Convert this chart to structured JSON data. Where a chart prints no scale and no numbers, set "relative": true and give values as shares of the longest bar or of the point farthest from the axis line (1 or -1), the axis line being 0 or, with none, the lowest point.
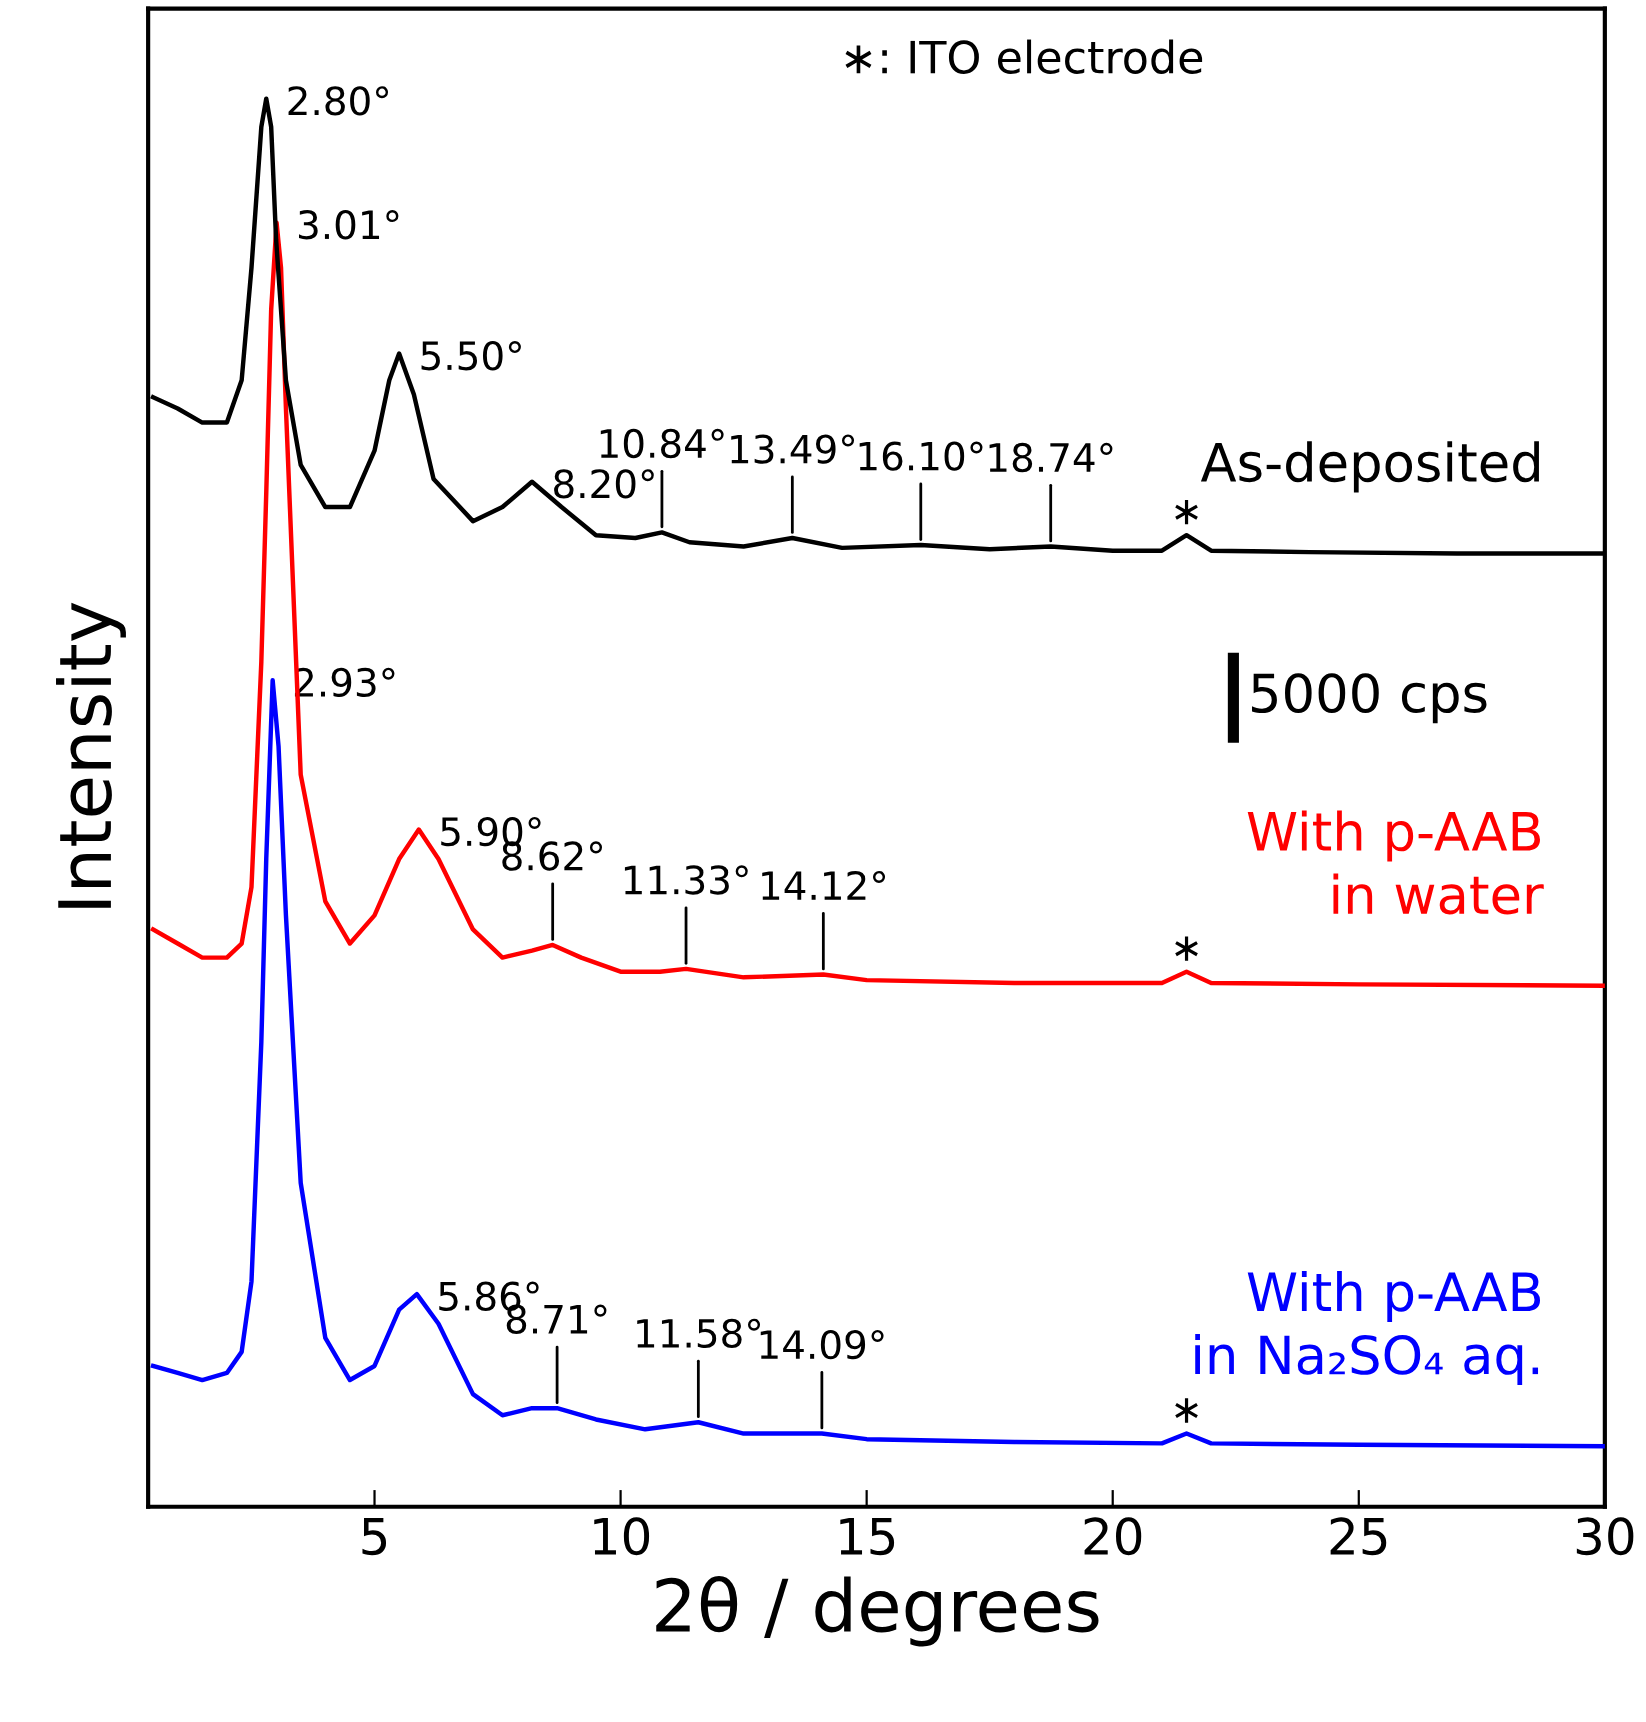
{
  "chart_data": {
    "type": "line",
    "relative": true,
    "xlabel": "2θ / degrees",
    "ylabel": "Intensity",
    "xlim": [
      0.4,
      30
    ],
    "xticks": [
      5,
      10,
      15,
      20,
      25,
      30
    ],
    "tick_labels": "x",
    "grid": false,
    "legend": false,
    "series": [
      {
        "name": "As-deposited",
        "color": "#000000",
        "x": [
          0.5,
          1,
          1.5,
          2,
          2.3,
          2.5,
          2.7,
          2.8,
          2.9,
          3.0,
          3.2,
          3.5,
          4,
          4.5,
          5,
          5.3,
          5.5,
          5.8,
          6.2,
          7,
          7.6,
          8.2,
          8.8,
          9.5,
          10.3,
          10.84,
          11.4,
          12.5,
          13.49,
          14.5,
          16.1,
          17.5,
          18.74,
          20,
          21,
          21.5,
          22,
          24,
          27,
          30
        ],
        "values": [
          0.788,
          0.78,
          0.77,
          0.77,
          0.8,
          0.88,
          0.98,
          1.0,
          0.98,
          0.9,
          0.8,
          0.74,
          0.71,
          0.71,
          0.75,
          0.8,
          0.819,
          0.79,
          0.73,
          0.7,
          0.71,
          0.728,
          0.71,
          0.69,
          0.688,
          0.692,
          0.685,
          0.682,
          0.688,
          0.681,
          0.683,
          0.68,
          0.682,
          0.679,
          0.679,
          0.69,
          0.679,
          0.678,
          0.677,
          0.677
        ]
      },
      {
        "name": "With p-AAB\nin water",
        "color": "#ff0000",
        "x": [
          0.5,
          1,
          1.5,
          2,
          2.3,
          2.5,
          2.7,
          2.8,
          2.9,
          3.01,
          3.1,
          3.2,
          3.5,
          4,
          4.5,
          5,
          5.5,
          5.9,
          6.3,
          7,
          7.6,
          8.2,
          8.62,
          9.2,
          10,
          10.8,
          11.33,
          12.5,
          14.12,
          15,
          18,
          21,
          21.5,
          22,
          25,
          30
        ],
        "values": [
          0.41,
          0.4,
          0.39,
          0.39,
          0.4,
          0.44,
          0.6,
          0.72,
          0.85,
          0.912,
          0.88,
          0.78,
          0.52,
          0.43,
          0.4,
          0.42,
          0.46,
          0.481,
          0.46,
          0.41,
          0.39,
          0.395,
          0.399,
          0.39,
          0.38,
          0.38,
          0.382,
          0.376,
          0.378,
          0.374,
          0.372,
          0.372,
          0.38,
          0.372,
          0.371,
          0.37
        ]
      },
      {
        "name": "With p-AAB\nin Na₂SO₄ aq.",
        "color": "#0000ff",
        "x": [
          0.5,
          1,
          1.5,
          2,
          2.3,
          2.5,
          2.7,
          2.8,
          2.93,
          3.05,
          3.2,
          3.5,
          4,
          4.5,
          5,
          5.5,
          5.86,
          6.3,
          7,
          7.6,
          8.2,
          8.71,
          9.5,
          10.5,
          11.58,
          12.5,
          14.09,
          15,
          18,
          21,
          21.5,
          22,
          25,
          30
        ],
        "values": [
          0.1,
          0.095,
          0.09,
          0.095,
          0.11,
          0.16,
          0.33,
          0.46,
          0.587,
          0.54,
          0.42,
          0.23,
          0.12,
          0.09,
          0.1,
          0.14,
          0.151,
          0.13,
          0.08,
          0.065,
          0.07,
          0.07,
          0.062,
          0.055,
          0.06,
          0.052,
          0.052,
          0.048,
          0.046,
          0.045,
          0.052,
          0.045,
          0.044,
          0.043
        ]
      }
    ],
    "annotations": [
      "∗: ITO electrode",
      "5000 cps",
      {
        "text": "2.80°",
        "x": 2.8,
        "y": 1.0
      },
      {
        "text": "5.50°",
        "x": 5.5,
        "y": 0.819
      },
      {
        "text": "8.20°",
        "x": 8.2,
        "y": 0.728
      },
      {
        "text": "10.84°",
        "x": 10.84,
        "y": 0.692
      },
      {
        "text": "13.49°",
        "x": 13.49,
        "y": 0.688
      },
      {
        "text": "16.10°",
        "x": 16.1,
        "y": 0.683
      },
      {
        "text": "18.74°",
        "x": 18.74,
        "y": 0.682
      },
      {
        "text": "∗",
        "x": 21.5,
        "y": 0.69
      },
      {
        "text": "3.01°",
        "x": 3.01,
        "y": 0.912
      },
      {
        "text": "5.90°",
        "x": 5.9,
        "y": 0.481
      },
      {
        "text": "8.62°",
        "x": 8.62,
        "y": 0.399
      },
      {
        "text": "11.33°",
        "x": 11.33,
        "y": 0.382
      },
      {
        "text": "14.12°",
        "x": 14.12,
        "y": 0.378
      },
      {
        "text": "∗",
        "x": 21.5,
        "y": 0.38
      },
      {
        "text": "2.93°",
        "x": 2.93,
        "y": 0.587
      },
      {
        "text": "5.86°",
        "x": 5.86,
        "y": 0.151
      },
      {
        "text": "8.71°",
        "x": 8.71,
        "y": 0.07
      },
      {
        "text": "11.58°",
        "x": 11.58,
        "y": 0.06
      },
      {
        "text": "14.09°",
        "x": 14.09,
        "y": 0.052
      },
      {
        "text": "∗",
        "x": 21.5,
        "y": 0.052
      }
    ]
  }
}
